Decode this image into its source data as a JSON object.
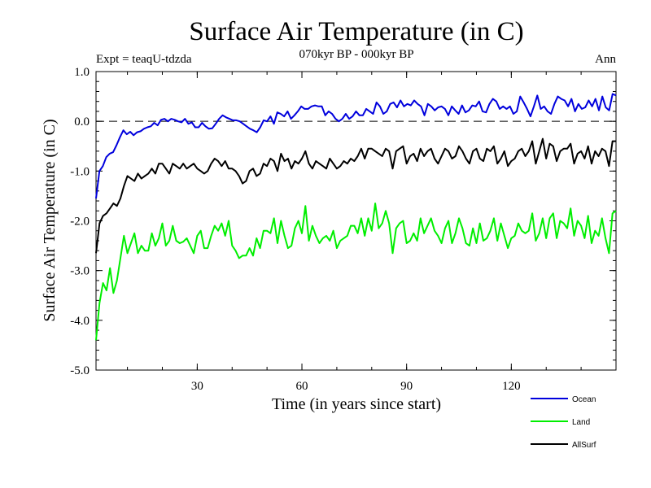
{
  "chart_data": {
    "type": "line",
    "title": "Surface Air Temperature (in C)",
    "subtitle": "070kyr BP - 000kyr BP",
    "expt_label": "Expt = teaqU-tdzda",
    "season_label": "Ann",
    "xlabel": "Time (in years since start)",
    "ylabel": "Surface Air Temperature (in C)",
    "xlim": [
      1,
      150
    ],
    "ylim": [
      -5.0,
      1.0
    ],
    "x_ticks": [
      30,
      60,
      90,
      120
    ],
    "x_tick_labels": [
      "30",
      "60",
      "90",
      "120"
    ],
    "y_ticks": [
      -5.0,
      -4.0,
      -3.0,
      -2.0,
      -1.0,
      0.0,
      1.0
    ],
    "y_tick_labels": [
      "-5.0",
      "-4.0",
      "-3.0",
      "-2.0",
      "-1.0",
      "0.0",
      "1.0"
    ],
    "reference_line": 0.0,
    "legend_position": "bottom-right",
    "series": [
      {
        "name": "Ocean",
        "color": "#0000dd",
        "values": [
          -1.55,
          -1.0,
          -0.9,
          -0.72,
          -0.65,
          -0.62,
          -0.48,
          -0.32,
          -0.18,
          -0.26,
          -0.21,
          -0.28,
          -0.22,
          -0.2,
          -0.15,
          -0.12,
          -0.1,
          -0.03,
          -0.08,
          0.03,
          0.05,
          0.0,
          0.05,
          0.03,
          0.0,
          -0.02,
          0.05,
          -0.05,
          -0.02,
          -0.12,
          -0.12,
          -0.03,
          -0.1,
          -0.15,
          -0.14,
          -0.05,
          0.05,
          0.12,
          0.08,
          0.05,
          0.02,
          0.02,
          0.0,
          -0.05,
          -0.1,
          -0.15,
          -0.18,
          -0.22,
          -0.12,
          0.02,
          0.0,
          0.1,
          -0.05,
          0.18,
          0.15,
          0.1,
          0.2,
          0.05,
          0.12,
          0.2,
          0.3,
          0.25,
          0.25,
          0.3,
          0.32,
          0.3,
          0.3,
          0.12,
          0.2,
          0.15,
          0.05,
          0.0,
          0.05,
          0.15,
          0.05,
          0.1,
          0.2,
          0.12,
          0.12,
          0.25,
          0.2,
          0.15,
          0.38,
          0.3,
          0.15,
          0.2,
          0.35,
          0.38,
          0.28,
          0.42,
          0.3,
          0.35,
          0.32,
          0.42,
          0.35,
          0.3,
          0.12,
          0.35,
          0.3,
          0.22,
          0.28,
          0.3,
          0.25,
          0.12,
          0.3,
          0.22,
          0.15,
          0.32,
          0.18,
          0.22,
          0.32,
          0.3,
          0.4,
          0.2,
          0.18,
          0.35,
          0.45,
          0.4,
          0.25,
          0.3,
          0.25,
          0.3,
          0.15,
          0.2,
          0.5,
          0.38,
          0.25,
          0.1,
          0.3,
          0.52,
          0.25,
          0.3,
          0.2,
          0.15,
          0.35,
          0.5,
          0.45,
          0.42,
          0.3,
          0.45,
          0.2,
          0.35,
          0.25,
          0.28,
          0.42,
          0.3,
          0.45,
          0.22,
          0.5,
          0.28,
          0.22,
          0.55,
          0.52
        ]
      },
      {
        "name": "Land",
        "color": "#00ee00",
        "values": [
          -4.4,
          -3.65,
          -3.25,
          -3.4,
          -2.95,
          -3.45,
          -3.2,
          -2.75,
          -2.3,
          -2.65,
          -2.45,
          -2.25,
          -2.65,
          -2.5,
          -2.6,
          -2.6,
          -2.25,
          -2.5,
          -2.35,
          -2.05,
          -2.5,
          -2.4,
          -2.1,
          -2.4,
          -2.45,
          -2.42,
          -2.35,
          -2.5,
          -2.65,
          -2.3,
          -2.2,
          -2.55,
          -2.55,
          -2.3,
          -2.1,
          -2.2,
          -2.05,
          -2.3,
          -2.0,
          -2.5,
          -2.6,
          -2.75,
          -2.7,
          -2.7,
          -2.55,
          -2.7,
          -2.35,
          -2.55,
          -2.2,
          -2.2,
          -2.25,
          -1.95,
          -2.45,
          -2.0,
          -2.3,
          -2.55,
          -2.5,
          -2.15,
          -2.0,
          -2.25,
          -1.7,
          -2.4,
          -2.1,
          -2.3,
          -2.45,
          -2.35,
          -2.3,
          -2.4,
          -2.2,
          -2.55,
          -2.4,
          -2.35,
          -2.3,
          -2.1,
          -2.1,
          -2.25,
          -1.95,
          -2.3,
          -1.95,
          -2.2,
          -1.65,
          -2.15,
          -2.05,
          -1.8,
          -2.05,
          -2.65,
          -2.15,
          -2.05,
          -2.0,
          -2.45,
          -2.4,
          -2.25,
          -2.4,
          -1.95,
          -2.25,
          -2.1,
          -1.95,
          -2.2,
          -2.3,
          -2.45,
          -2.15,
          -2.0,
          -2.45,
          -2.25,
          -1.95,
          -2.15,
          -2.45,
          -2.5,
          -2.15,
          -2.45,
          -2.05,
          -2.4,
          -2.35,
          -2.2,
          -1.95,
          -2.4,
          -2.05,
          -2.3,
          -2.55,
          -2.35,
          -2.3,
          -2.05,
          -2.2,
          -2.25,
          -2.2,
          -1.85,
          -2.4,
          -2.25,
          -1.95,
          -2.35,
          -1.95,
          -1.85,
          -2.35,
          -2.0,
          -2.05,
          -2.15,
          -1.75,
          -2.3,
          -2.0,
          -2.1,
          -2.35,
          -1.9,
          -2.45,
          -2.2,
          -2.3,
          -1.95,
          -2.35,
          -2.65,
          -1.85,
          -1.8
        ]
      },
      {
        "name": "AllSurf",
        "color": "#000000",
        "values": [
          -2.65,
          -2.05,
          -1.9,
          -1.85,
          -1.75,
          -1.65,
          -1.7,
          -1.55,
          -1.3,
          -1.1,
          -1.15,
          -1.2,
          -1.05,
          -1.15,
          -1.1,
          -1.05,
          -0.95,
          -1.05,
          -0.85,
          -0.85,
          -0.95,
          -1.05,
          -0.85,
          -0.9,
          -0.95,
          -0.85,
          -0.95,
          -0.9,
          -0.85,
          -0.95,
          -1.0,
          -1.05,
          -1.0,
          -0.85,
          -0.75,
          -0.8,
          -0.9,
          -0.8,
          -0.95,
          -0.95,
          -1.0,
          -1.1,
          -1.25,
          -1.2,
          -1.0,
          -0.95,
          -1.1,
          -1.05,
          -0.85,
          -0.9,
          -0.75,
          -0.8,
          -1.0,
          -0.65,
          -0.8,
          -0.75,
          -0.95,
          -0.8,
          -0.85,
          -0.75,
          -0.6,
          -0.85,
          -0.95,
          -0.8,
          -0.85,
          -0.9,
          -0.95,
          -0.75,
          -0.85,
          -0.95,
          -0.9,
          -0.8,
          -0.85,
          -0.75,
          -0.8,
          -0.7,
          -0.55,
          -0.75,
          -0.55,
          -0.55,
          -0.6,
          -0.65,
          -0.7,
          -0.55,
          -0.6,
          -0.95,
          -0.6,
          -0.55,
          -0.5,
          -0.85,
          -0.7,
          -0.65,
          -0.8,
          -0.55,
          -0.7,
          -0.6,
          -0.55,
          -0.75,
          -0.85,
          -0.7,
          -0.55,
          -0.6,
          -0.75,
          -0.7,
          -0.5,
          -0.6,
          -0.75,
          -0.85,
          -0.6,
          -0.55,
          -0.75,
          -0.8,
          -0.55,
          -0.6,
          -0.5,
          -0.85,
          -0.75,
          -0.6,
          -0.9,
          -0.8,
          -0.75,
          -0.6,
          -0.55,
          -0.7,
          -0.6,
          -0.4,
          -0.85,
          -0.6,
          -0.35,
          -0.75,
          -0.45,
          -0.5,
          -0.8,
          -0.6,
          -0.55,
          -0.55,
          -0.45,
          -0.85,
          -0.65,
          -0.6,
          -0.75,
          -0.5,
          -0.85,
          -0.6,
          -0.7,
          -0.55,
          -0.6,
          -0.9,
          -0.4,
          -0.4
        ]
      }
    ]
  }
}
